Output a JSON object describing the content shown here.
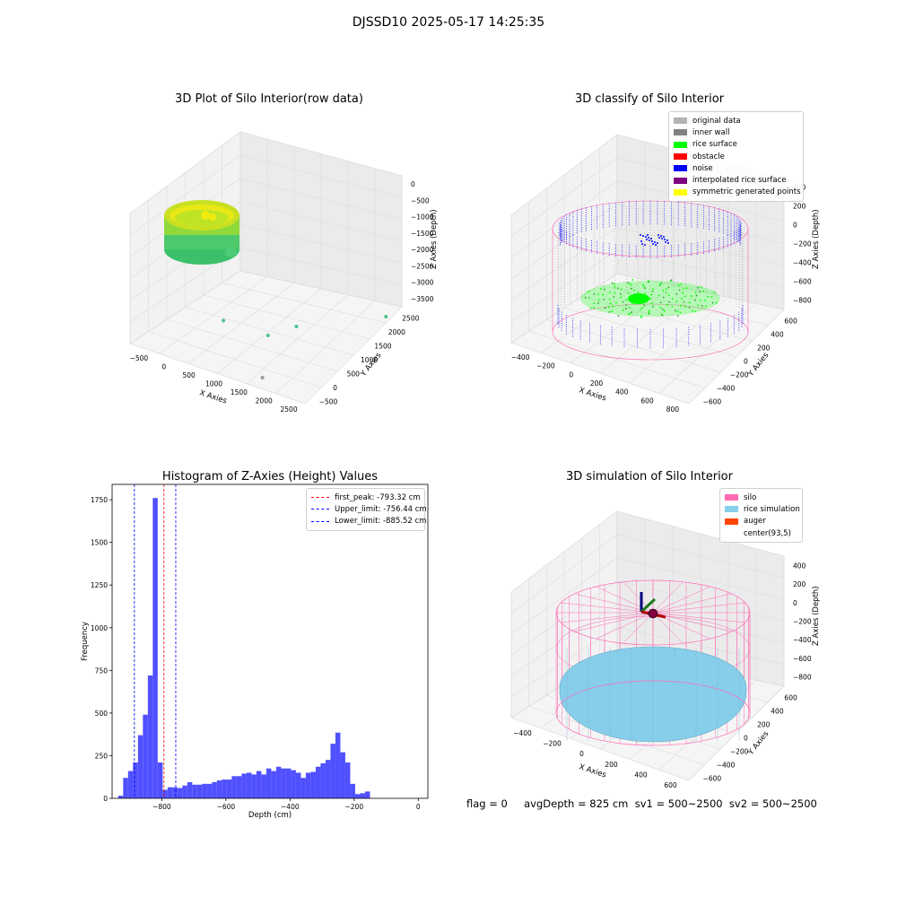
{
  "suptitle": "DJSSD10 2025-05-17 14:25:35",
  "footer": "flag = 0     avgDepth = 825 cm  sv1 = 500~2500  sv2 = 500~2500",
  "colors": {
    "original": "#b3b3b3",
    "wall": "#808080",
    "rice": "#00ff00",
    "obstacle": "#ff0000",
    "noise": "#0000ff",
    "interp": "#800080",
    "symmetric": "#ffff00",
    "silo": "#ff69b4",
    "rice_sim": "#87ceeb",
    "auger": "#ff4500",
    "hist": "#5050ff"
  },
  "chart_data": [
    {
      "type": "scatter",
      "title": "3D Plot of Silo Interior(row data)",
      "xlabel": "X Axies",
      "ylabel": "Y Axies",
      "zlabel": "Z Axies (Depth)",
      "xticks": [
        "−500",
        "0",
        "500",
        "1000",
        "1500",
        "2000",
        "2500"
      ],
      "yticks": [
        "−500",
        "0",
        "500",
        "1000",
        "1500",
        "2000",
        "2500"
      ],
      "zticks": [
        "0",
        "−500",
        "−1000",
        "−1500",
        "−2000",
        "−2500",
        "−3000",
        "−3500"
      ],
      "outliers": [
        [
          320,
          800,
          -1500
        ],
        [
          700,
          1300,
          -1900
        ],
        [
          950,
          1600,
          -1800
        ],
        [
          1900,
          2300,
          -1650
        ],
        [
          800,
          1000,
          -2500
        ]
      ]
    },
    {
      "type": "scatter",
      "title": "3D classify of Silo Interior",
      "xlabel": "X Axies",
      "ylabel": "Y Axies",
      "zlabel": "Z Axies (Depth)",
      "xticks": [
        "−400",
        "−200",
        "0",
        "200",
        "400",
        "600",
        "800"
      ],
      "yticks": [
        "−600",
        "−400",
        "−200",
        "0",
        "200",
        "400",
        "600"
      ],
      "zticks": [
        "400",
        "200",
        "0",
        "−200",
        "−400",
        "−600",
        "−800"
      ],
      "legend": [
        "original data",
        "inner wall",
        "rice surface",
        "obstacle",
        "noise",
        "interpolated rice surface",
        "symmetric generated points"
      ]
    },
    {
      "type": "bar",
      "title": "Histogram of Z-Axies (Height) Values",
      "xlabel": "Depth (cm)",
      "ylabel": "Frequency",
      "xlim": [
        -955,
        30
      ],
      "ylim": [
        0,
        1840
      ],
      "xticks": [
        -800,
        -600,
        -400,
        -200,
        0
      ],
      "yticks": [
        0,
        250,
        500,
        750,
        1000,
        1250,
        1500,
        1750
      ],
      "bin_start": -936,
      "bin_width": 15.4,
      "values": [
        15,
        120,
        160,
        210,
        370,
        490,
        720,
        1760,
        210,
        50,
        65,
        65,
        60,
        75,
        95,
        80,
        80,
        85,
        85,
        95,
        105,
        110,
        110,
        130,
        130,
        145,
        150,
        140,
        160,
        140,
        175,
        160,
        185,
        175,
        175,
        165,
        150,
        120,
        150,
        155,
        185,
        205,
        225,
        320,
        385,
        270,
        210,
        85,
        25,
        30,
        40
      ],
      "lines": [
        {
          "label": "first_peak: -793.32 cm",
          "x": -793.32,
          "color": "#ff0000"
        },
        {
          "label": "Upper_limit: -756.44 cm",
          "x": -756.44,
          "color": "#0000ff"
        },
        {
          "label": "Lower_limit: -885.52 cm",
          "x": -885.52,
          "color": "#0000ff"
        }
      ]
    },
    {
      "type": "surface",
      "title": "3D simulation of Silo Interior",
      "xlabel": "X Axies",
      "ylabel": "Y Axies",
      "zlabel": "Z Axies (Depth)",
      "xticks": [
        "−400",
        "−200",
        "0",
        "200",
        "400",
        "600"
      ],
      "yticks": [
        "−600",
        "−400",
        "−200",
        "0",
        "200",
        "400",
        "600"
      ],
      "zticks": [
        "400",
        "200",
        "0",
        "−200",
        "−400",
        "−600",
        "−800"
      ],
      "legend": [
        "silo",
        "rice simulation",
        "auger",
        "center(93,5)"
      ]
    }
  ]
}
